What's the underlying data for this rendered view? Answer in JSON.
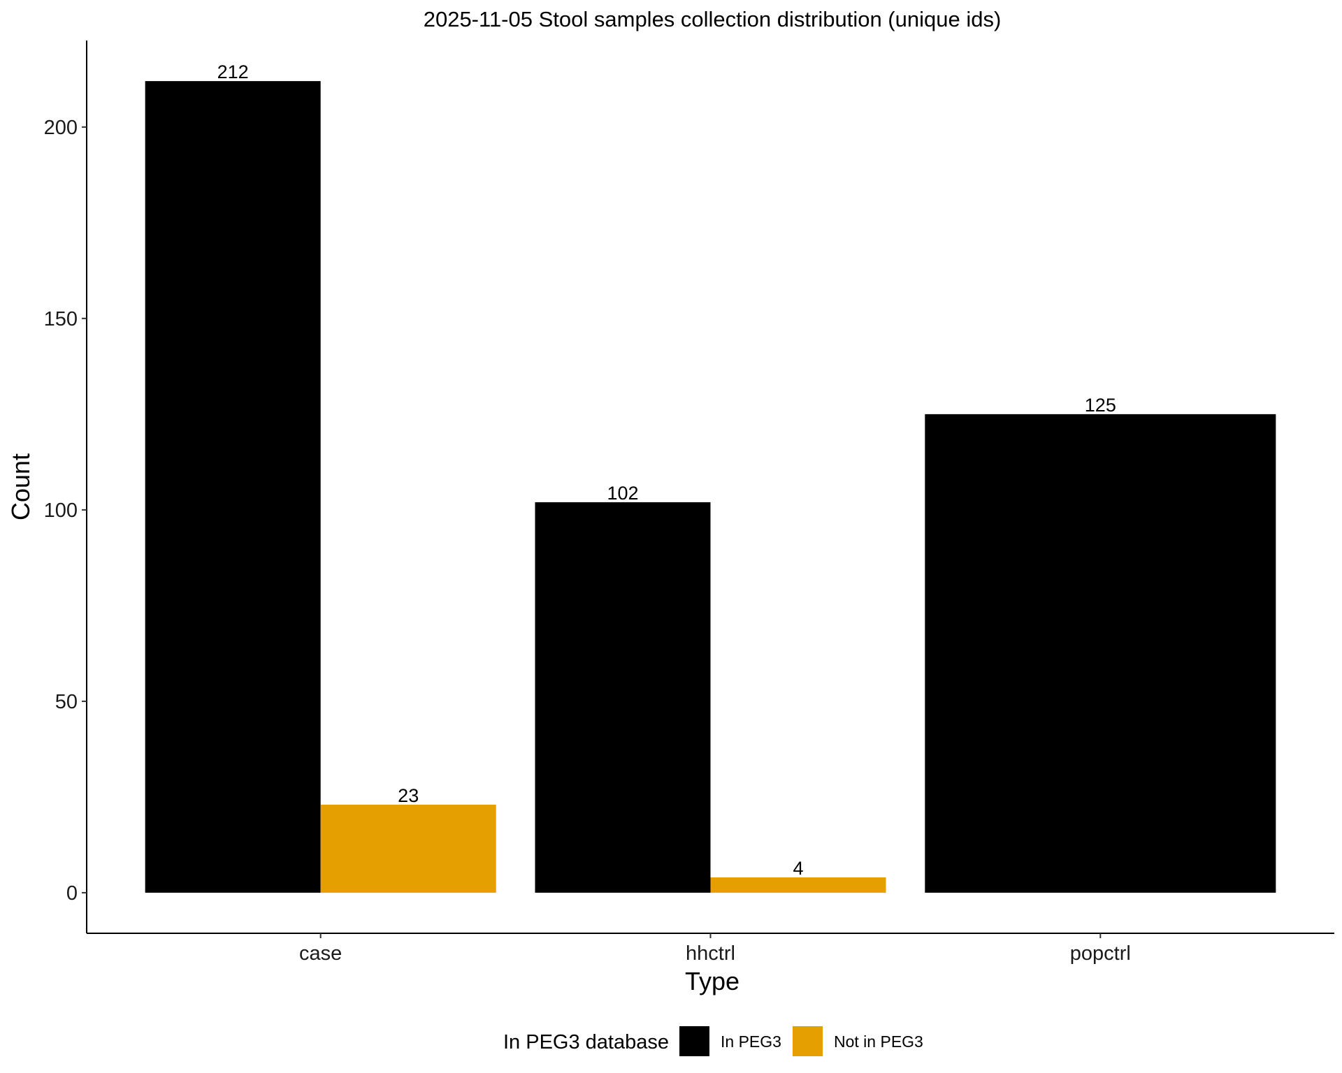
{
  "chart_data": {
    "type": "bar",
    "title": "2025-11-05 Stool samples collection distribution (unique ids)",
    "xlabel": "Type",
    "ylabel": "Count",
    "categories": [
      "case",
      "hhctrl",
      "popctrl"
    ],
    "series": [
      {
        "name": "In PEG3",
        "color": "#000000",
        "values": [
          212,
          102,
          125
        ]
      },
      {
        "name": "Not in PEG3",
        "color": "#E69F00",
        "values": [
          23,
          4,
          null
        ]
      }
    ],
    "yticks": [
      0,
      50,
      100,
      150,
      200
    ],
    "ylim": [
      -10.6,
      222.6
    ],
    "grid": false,
    "legend": {
      "title": "In PEG3 database",
      "position": "bottom"
    }
  }
}
